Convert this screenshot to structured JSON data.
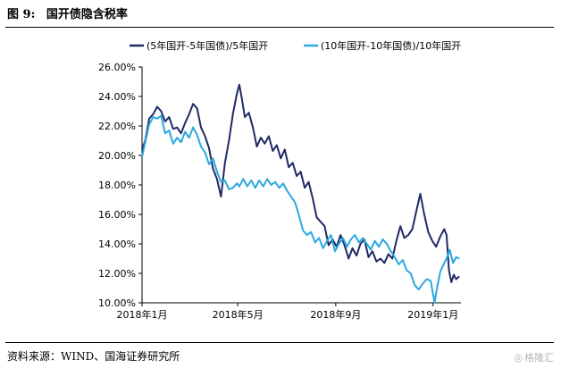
{
  "figure": {
    "number": "图 9:",
    "title": "国开债隐含税率",
    "source": "资料来源：WIND、国海证券研究所",
    "watermark": "格隆汇"
  },
  "chart_data": {
    "type": "line",
    "ylim": [
      10,
      26
    ],
    "y_ticks": [
      "26.00%",
      "24.00%",
      "22.00%",
      "20.00%",
      "18.00%",
      "16.00%",
      "14.00%",
      "12.00%",
      "10.00%"
    ],
    "y_tick_values": [
      26,
      24,
      22,
      20,
      18,
      16,
      14,
      12,
      10
    ],
    "x_ticks": [
      "2018年1月",
      "2018年5月",
      "2018年9月",
      "2019年1月"
    ],
    "x_tick_dates": [
      "2018-01-01",
      "2018-05-01",
      "2018-09-01",
      "2019-01-01"
    ],
    "x_range": [
      "2018-01-01",
      "2019-02-05"
    ],
    "legend_position": "top",
    "grid": false,
    "series": [
      {
        "name": "(5年国开-5年国债)/5年国开",
        "color": "#1f2a66",
        "points": [
          [
            "2018-01-01",
            20.4
          ],
          [
            "2018-01-05",
            21.0
          ],
          [
            "2018-01-10",
            22.5
          ],
          [
            "2018-01-15",
            22.8
          ],
          [
            "2018-01-20",
            23.3
          ],
          [
            "2018-01-25",
            23.0
          ],
          [
            "2018-01-30",
            22.3
          ],
          [
            "2018-02-04",
            22.6
          ],
          [
            "2018-02-09",
            21.8
          ],
          [
            "2018-02-14",
            21.9
          ],
          [
            "2018-02-19",
            21.5
          ],
          [
            "2018-02-24",
            22.2
          ],
          [
            "2018-03-01",
            22.8
          ],
          [
            "2018-03-06",
            23.5
          ],
          [
            "2018-03-11",
            23.2
          ],
          [
            "2018-03-16",
            21.9
          ],
          [
            "2018-03-21",
            21.3
          ],
          [
            "2018-03-26",
            20.5
          ],
          [
            "2018-03-31",
            19.1
          ],
          [
            "2018-04-05",
            18.4
          ],
          [
            "2018-04-10",
            17.2
          ],
          [
            "2018-04-15",
            19.5
          ],
          [
            "2018-04-20",
            21.0
          ],
          [
            "2018-04-25",
            22.8
          ],
          [
            "2018-04-30",
            24.2
          ],
          [
            "2018-05-03",
            24.8
          ],
          [
            "2018-05-06",
            23.9
          ],
          [
            "2018-05-10",
            22.6
          ],
          [
            "2018-05-15",
            22.9
          ],
          [
            "2018-05-20",
            21.9
          ],
          [
            "2018-05-25",
            20.6
          ],
          [
            "2018-05-30",
            21.2
          ],
          [
            "2018-06-04",
            20.8
          ],
          [
            "2018-06-09",
            21.3
          ],
          [
            "2018-06-14",
            20.3
          ],
          [
            "2018-06-19",
            20.7
          ],
          [
            "2018-06-24",
            19.8
          ],
          [
            "2018-06-29",
            20.4
          ],
          [
            "2018-07-04",
            19.2
          ],
          [
            "2018-07-09",
            19.5
          ],
          [
            "2018-07-14",
            18.6
          ],
          [
            "2018-07-19",
            18.9
          ],
          [
            "2018-07-24",
            17.8
          ],
          [
            "2018-07-29",
            18.2
          ],
          [
            "2018-08-03",
            17.1
          ],
          [
            "2018-08-08",
            15.8
          ],
          [
            "2018-08-13",
            15.5
          ],
          [
            "2018-08-18",
            15.2
          ],
          [
            "2018-08-23",
            13.9
          ],
          [
            "2018-08-28",
            14.3
          ],
          [
            "2018-09-02",
            13.8
          ],
          [
            "2018-09-07",
            14.6
          ],
          [
            "2018-09-12",
            13.9
          ],
          [
            "2018-09-17",
            13.0
          ],
          [
            "2018-09-22",
            13.7
          ],
          [
            "2018-09-27",
            13.2
          ],
          [
            "2018-10-02",
            14.0
          ],
          [
            "2018-10-07",
            14.3
          ],
          [
            "2018-10-12",
            13.1
          ],
          [
            "2018-10-17",
            13.5
          ],
          [
            "2018-10-22",
            12.8
          ],
          [
            "2018-10-27",
            13.0
          ],
          [
            "2018-11-01",
            12.7
          ],
          [
            "2018-11-06",
            13.3
          ],
          [
            "2018-11-11",
            13.0
          ],
          [
            "2018-11-16",
            14.2
          ],
          [
            "2018-11-21",
            15.2
          ],
          [
            "2018-11-26",
            14.4
          ],
          [
            "2018-12-01",
            14.6
          ],
          [
            "2018-12-06",
            15.0
          ],
          [
            "2018-12-11",
            16.2
          ],
          [
            "2018-12-16",
            17.4
          ],
          [
            "2018-12-21",
            16.0
          ],
          [
            "2018-12-26",
            14.8
          ],
          [
            "2018-12-31",
            14.2
          ],
          [
            "2019-01-05",
            13.8
          ],
          [
            "2019-01-10",
            14.5
          ],
          [
            "2019-01-15",
            15.0
          ],
          [
            "2019-01-18",
            14.6
          ],
          [
            "2019-01-21",
            12.2
          ],
          [
            "2019-01-24",
            11.4
          ],
          [
            "2019-01-27",
            11.9
          ],
          [
            "2019-01-30",
            11.6
          ],
          [
            "2019-02-03",
            11.8
          ]
        ]
      },
      {
        "name": "(10年国开-10年国债)/10年国开",
        "color": "#2ba8e0",
        "points": [
          [
            "2018-01-01",
            19.9
          ],
          [
            "2018-01-05",
            20.9
          ],
          [
            "2018-01-10",
            22.1
          ],
          [
            "2018-01-15",
            22.6
          ],
          [
            "2018-01-20",
            22.5
          ],
          [
            "2018-01-25",
            22.7
          ],
          [
            "2018-01-30",
            21.5
          ],
          [
            "2018-02-04",
            21.7
          ],
          [
            "2018-02-09",
            20.8
          ],
          [
            "2018-02-14",
            21.2
          ],
          [
            "2018-02-19",
            20.9
          ],
          [
            "2018-02-24",
            21.6
          ],
          [
            "2018-03-01",
            21.2
          ],
          [
            "2018-03-06",
            21.9
          ],
          [
            "2018-03-11",
            21.4
          ],
          [
            "2018-03-16",
            20.6
          ],
          [
            "2018-03-21",
            20.2
          ],
          [
            "2018-03-26",
            19.4
          ],
          [
            "2018-03-31",
            19.8
          ],
          [
            "2018-04-05",
            18.9
          ],
          [
            "2018-04-10",
            18.2
          ],
          [
            "2018-04-15",
            18.3
          ],
          [
            "2018-04-20",
            17.7
          ],
          [
            "2018-04-25",
            17.8
          ],
          [
            "2018-04-30",
            18.1
          ],
          [
            "2018-05-03",
            17.9
          ],
          [
            "2018-05-08",
            18.4
          ],
          [
            "2018-05-13",
            17.9
          ],
          [
            "2018-05-18",
            18.3
          ],
          [
            "2018-05-23",
            17.8
          ],
          [
            "2018-05-28",
            18.3
          ],
          [
            "2018-06-02",
            17.9
          ],
          [
            "2018-06-07",
            18.4
          ],
          [
            "2018-06-12",
            18.0
          ],
          [
            "2018-06-17",
            18.2
          ],
          [
            "2018-06-22",
            17.8
          ],
          [
            "2018-06-27",
            18.1
          ],
          [
            "2018-07-02",
            17.6
          ],
          [
            "2018-07-07",
            17.2
          ],
          [
            "2018-07-12",
            16.8
          ],
          [
            "2018-07-17",
            15.9
          ],
          [
            "2018-07-22",
            14.9
          ],
          [
            "2018-07-27",
            14.6
          ],
          [
            "2018-08-01",
            14.8
          ],
          [
            "2018-08-06",
            14.1
          ],
          [
            "2018-08-11",
            14.4
          ],
          [
            "2018-08-16",
            13.7
          ],
          [
            "2018-08-21",
            14.2
          ],
          [
            "2018-08-26",
            14.6
          ],
          [
            "2018-08-31",
            13.5
          ],
          [
            "2018-09-05",
            14.0
          ],
          [
            "2018-09-10",
            14.4
          ],
          [
            "2018-09-15",
            13.8
          ],
          [
            "2018-09-20",
            14.3
          ],
          [
            "2018-09-25",
            14.6
          ],
          [
            "2018-09-30",
            14.1
          ],
          [
            "2018-10-05",
            14.4
          ],
          [
            "2018-10-10",
            14.0
          ],
          [
            "2018-10-15",
            13.6
          ],
          [
            "2018-10-20",
            14.2
          ],
          [
            "2018-10-25",
            13.8
          ],
          [
            "2018-10-30",
            14.3
          ],
          [
            "2018-11-04",
            14.0
          ],
          [
            "2018-11-09",
            13.5
          ],
          [
            "2018-11-14",
            13.1
          ],
          [
            "2018-11-19",
            12.6
          ],
          [
            "2018-11-24",
            12.9
          ],
          [
            "2018-11-29",
            12.2
          ],
          [
            "2018-12-04",
            12.0
          ],
          [
            "2018-12-09",
            11.2
          ],
          [
            "2018-12-14",
            10.9
          ],
          [
            "2018-12-19",
            11.3
          ],
          [
            "2018-12-24",
            11.6
          ],
          [
            "2018-12-29",
            11.5
          ],
          [
            "2019-01-03",
            10.0
          ],
          [
            "2019-01-06",
            11.0
          ],
          [
            "2019-01-10",
            12.1
          ],
          [
            "2019-01-14",
            12.6
          ],
          [
            "2019-01-18",
            13.0
          ],
          [
            "2019-01-22",
            13.6
          ],
          [
            "2019-01-26",
            12.7
          ],
          [
            "2019-01-30",
            13.1
          ],
          [
            "2019-02-03",
            13.0
          ]
        ]
      }
    ]
  }
}
